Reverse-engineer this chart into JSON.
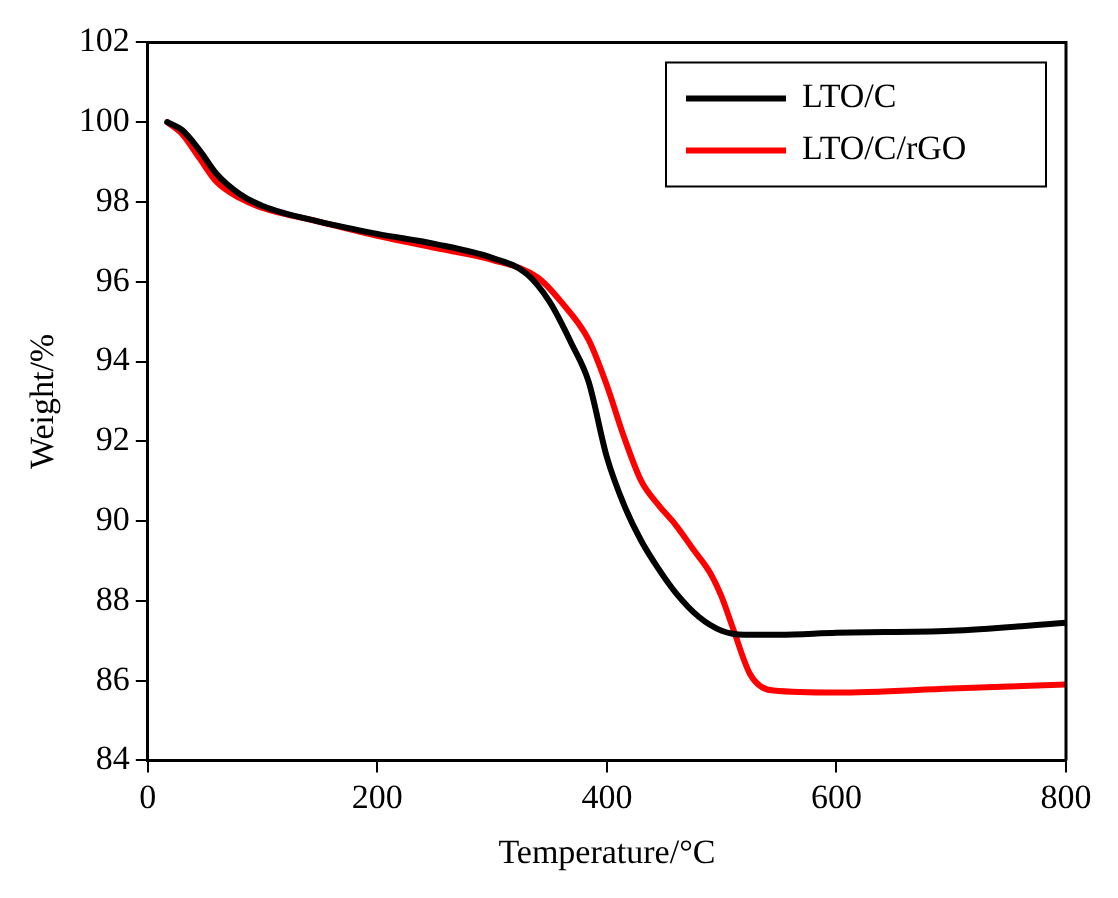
{
  "chart_data": {
    "type": "line",
    "xlabel": "Temperature/°C",
    "ylabel": "Weight/%",
    "xlim": [
      0,
      800
    ],
    "xticks": [
      0,
      200,
      400,
      600,
      800
    ],
    "ylim": [
      84,
      102
    ],
    "yticks": [
      84,
      86,
      88,
      90,
      92,
      94,
      96,
      98,
      100,
      102
    ],
    "grid": false,
    "legend": "top right",
    "marker": "none",
    "line_style": "solid",
    "series": [
      {
        "name": "LTO/C",
        "color": "#000000",
        "x": [
          17,
          30,
          45,
          60,
          80,
          100,
          150,
          200,
          250,
          300,
          330,
          350,
          370,
          384,
          400,
          415,
          430,
          445,
          460,
          480,
          500,
          520,
          550,
          600,
          700,
          800
        ],
        "values": [
          100.0,
          99.8,
          99.3,
          98.7,
          98.2,
          97.9,
          97.5,
          97.2,
          96.95,
          96.6,
          96.2,
          95.5,
          94.4,
          93.5,
          91.6,
          90.4,
          89.5,
          88.8,
          88.2,
          87.6,
          87.25,
          87.15,
          87.15,
          87.2,
          87.25,
          87.45
        ]
      },
      {
        "name": "LTO/C/rGO",
        "color": "#ff0000",
        "x": [
          17,
          30,
          45,
          60,
          80,
          100,
          150,
          200,
          250,
          300,
          340,
          360,
          384,
          400,
          415,
          430,
          445,
          460,
          475,
          490,
          500,
          510,
          525,
          545,
          600,
          700,
          800
        ],
        "values": [
          100.0,
          99.7,
          99.1,
          98.5,
          98.1,
          97.85,
          97.5,
          97.15,
          96.85,
          96.55,
          96.1,
          95.5,
          94.55,
          93.4,
          92.1,
          91.0,
          90.4,
          89.9,
          89.3,
          88.7,
          88.1,
          87.3,
          86.15,
          85.75,
          85.7,
          85.8,
          85.9
        ]
      }
    ]
  }
}
